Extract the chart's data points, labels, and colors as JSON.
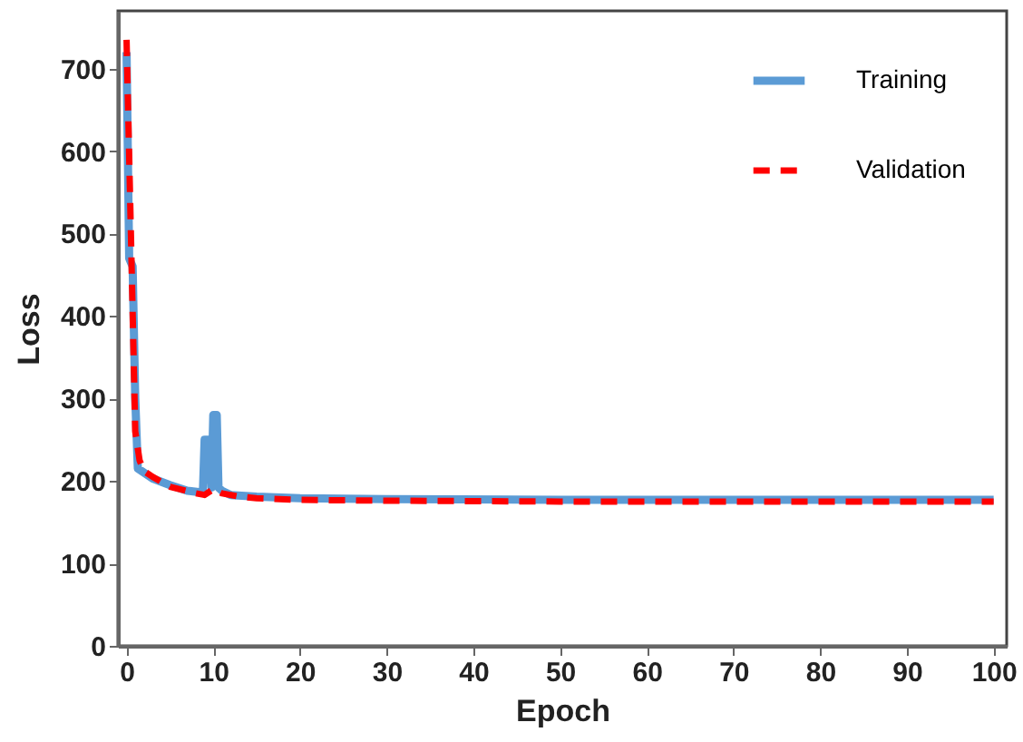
{
  "chart_data": {
    "type": "line",
    "xlabel": "Epoch",
    "ylabel": "Loss",
    "xlim": [
      -1,
      101.5
    ],
    "ylim": [
      0,
      770
    ],
    "xticks": [
      0,
      10,
      20,
      30,
      40,
      50,
      60,
      70,
      80,
      90,
      100
    ],
    "yticks": [
      0,
      100,
      200,
      300,
      400,
      500,
      600,
      700
    ],
    "grid": false,
    "legend": "top right",
    "series": [
      {
        "name": "Training",
        "color": "#5b9bd5",
        "line_style": "solid",
        "x": [
          0,
          0.3,
          0.7,
          1,
          1.3,
          2,
          3,
          5,
          7,
          8.8,
          9,
          9.6,
          9.8,
          10,
          10.4,
          10.6,
          11,
          12,
          15,
          20,
          30,
          50,
          70,
          100
        ],
        "values": [
          720,
          470,
          460,
          300,
          215,
          210,
          203,
          195,
          188,
          186,
          250,
          250,
          192,
          280,
          280,
          192,
          188,
          183,
          181,
          179,
          178,
          177,
          177,
          177
        ]
      },
      {
        "name": "Validation",
        "color": "#ff0000",
        "line_style": "dashed",
        "x": [
          0,
          0.5,
          1,
          1.5,
          2,
          3,
          5,
          8,
          9,
          10,
          11,
          13,
          15,
          20,
          30,
          50,
          70,
          100
        ],
        "values": [
          735,
          500,
          260,
          225,
          212,
          205,
          193,
          185,
          183,
          190,
          185,
          181,
          179,
          177,
          176,
          175,
          175,
          175
        ]
      }
    ]
  }
}
